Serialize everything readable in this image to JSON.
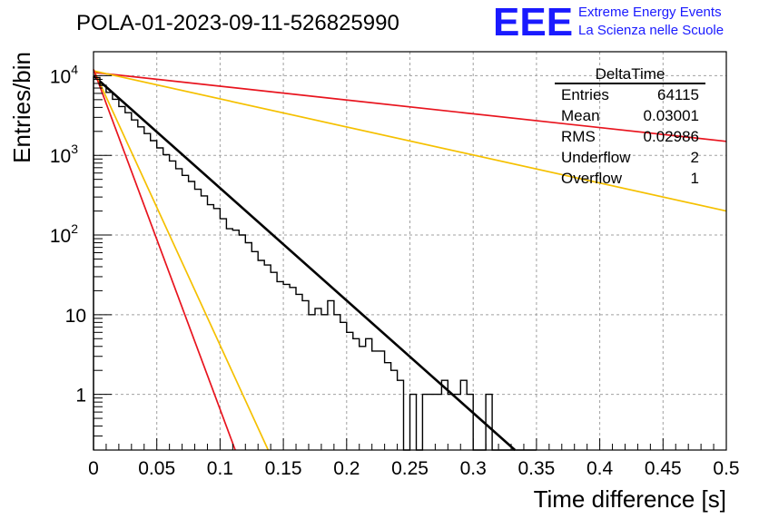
{
  "header": {
    "title": "POLA-01-2023-09-11-526825990",
    "logo_letters": "EEE",
    "logo_line1": "Extreme Energy Events",
    "logo_line2": "La Scienza nelle Scuole"
  },
  "stats_box": {
    "title": "DeltaTime",
    "rows": [
      {
        "label": "Entries",
        "value": "64115"
      },
      {
        "label": "Mean",
        "value": "0.03001"
      },
      {
        "label": "RMS",
        "value": "0.02986"
      },
      {
        "label": "Underflow",
        "value": "2"
      },
      {
        "label": "Overflow",
        "value": "1"
      }
    ]
  },
  "colors": {
    "logo": "#1a1aff",
    "histogram": "#000000",
    "fit": "#000000",
    "red": "#e8141e",
    "orange": "#f5c000",
    "grid": "#a0a0a0"
  },
  "chart_data": {
    "type": "line",
    "title": "POLA-01-2023-09-11-526825990",
    "xlabel": "Time difference [s]",
    "ylabel": "Entries/bin",
    "xlim": [
      0,
      0.5
    ],
    "ylim": [
      0.2,
      20000
    ],
    "y_scale": "log",
    "grid": true,
    "x_ticks": [
      "0",
      "0.05",
      "0.1",
      "0.15",
      "0.2",
      "0.25",
      "0.3",
      "0.35",
      "0.4",
      "0.45",
      "0.5"
    ],
    "y_ticks": [
      {
        "value": 10000,
        "base": "10",
        "exp": "4"
      },
      {
        "value": 1000,
        "base": "10",
        "exp": "3"
      },
      {
        "value": 100,
        "base": "10",
        "exp": "2"
      },
      {
        "value": 10,
        "base": "10",
        "exp": ""
      },
      {
        "value": 1,
        "base": "1",
        "exp": ""
      }
    ],
    "histogram": {
      "bin_width": 0.005,
      "x_start": 0.0,
      "counts": [
        9500,
        7550,
        6180,
        5060,
        4100,
        3430,
        2780,
        2280,
        1880,
        1530,
        1240,
        1020,
        850,
        680,
        560,
        470,
        375,
        310,
        240,
        215,
        160,
        120,
        115,
        100,
        80,
        62,
        48,
        42,
        34,
        26,
        24,
        22,
        18,
        15,
        10,
        12,
        10,
        15,
        10,
        8,
        6,
        5,
        4,
        5,
        3.5,
        3.5,
        2.5,
        2,
        1.5,
        0.1,
        1,
        0.1,
        1,
        1,
        1,
        1.5,
        1,
        1,
        1.5,
        1,
        0.1,
        0.1,
        1,
        0.1,
        0.1,
        0.1,
        0.1,
        0.1,
        0.1,
        0.1
      ]
    },
    "series": [
      {
        "name": "",
        "color": "#000000",
        "x": [
          0.0,
          0.333
        ],
        "y": [
          10000,
          0.2
        ]
      },
      {
        "name": "",
        "color": "#e8141e",
        "x": [
          0.0,
          0.5
        ],
        "y": [
          11000,
          1500
        ]
      },
      {
        "name": "",
        "color": "#f5c000",
        "x": [
          0.0,
          0.5
        ],
        "y": [
          11500,
          200
        ]
      },
      {
        "name": "",
        "color": "#f5c000",
        "x": [
          0.0,
          0.138
        ],
        "y": [
          12000,
          0.2
        ]
      },
      {
        "name": "",
        "color": "#e8141e",
        "x": [
          0.0,
          0.112
        ],
        "y": [
          12000,
          0.2
        ]
      }
    ]
  }
}
